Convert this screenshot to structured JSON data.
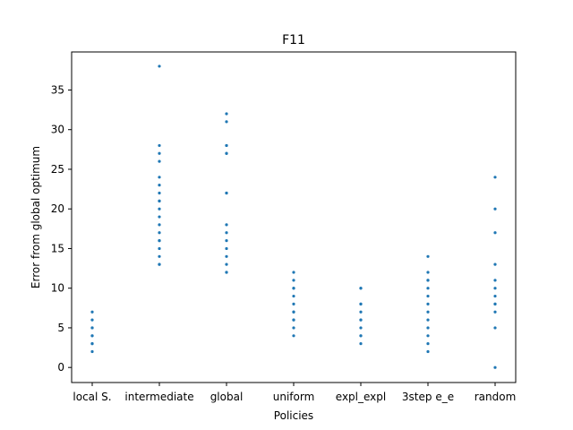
{
  "chart_data": {
    "type": "scatter",
    "title": "F11",
    "xlabel": "Policies",
    "ylabel": "Error from global optimum",
    "categories": [
      "local S.",
      "intermediate",
      "global",
      "uniform",
      "expl_expl",
      "3step e_e",
      "random"
    ],
    "ylim": [
      -1.9,
      39.8
    ],
    "yticks": [
      0,
      5,
      10,
      15,
      20,
      25,
      30,
      35
    ],
    "grid": false,
    "point_color": "#1f77b4",
    "points": [
      [
        2,
        3,
        3,
        4,
        4,
        5,
        5,
        6,
        7
      ],
      [
        13,
        13,
        14,
        15,
        16,
        16,
        17,
        18,
        19,
        20,
        21,
        21,
        22,
        23,
        24,
        26,
        27,
        28,
        38
      ],
      [
        12,
        12,
        13,
        14,
        15,
        16,
        17,
        18,
        22,
        22,
        27,
        27,
        28,
        28,
        31,
        32
      ],
      [
        4,
        5,
        6,
        6,
        7,
        7,
        8,
        9,
        10,
        10,
        11,
        12
      ],
      [
        3,
        4,
        4,
        5,
        6,
        6,
        7,
        8,
        8,
        10,
        10
      ],
      [
        2,
        3,
        4,
        5,
        6,
        7,
        8,
        9,
        10,
        11,
        11,
        12,
        14
      ],
      [
        0,
        5,
        7,
        8,
        8,
        9,
        10,
        11,
        13,
        17,
        20,
        24
      ]
    ]
  }
}
